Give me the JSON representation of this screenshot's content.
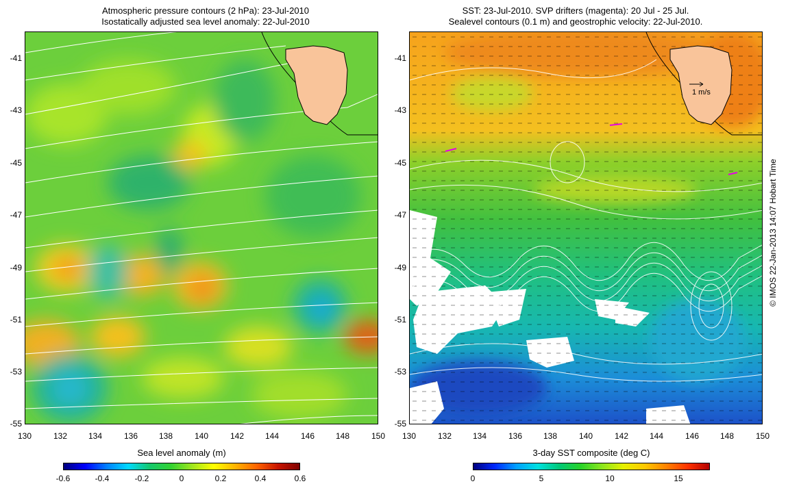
{
  "left_panel": {
    "title_line1": "Atmospheric pressure contours (2 hPa): 23-Jul-2010",
    "title_line2": "Isostatically adjusted sea level anomaly: 22-Jul-2010",
    "colorbar_label": "Sea level anomaly (m)",
    "colorbar_ticks": [
      "-0.6",
      "-0.4",
      "-0.2",
      "0",
      "0.2",
      "0.4",
      "0.6"
    ]
  },
  "right_panel": {
    "title_line1": "SST: 23-Jul-2010. SVP drifters (magenta): 20 Jul - 25 Jul.",
    "title_line2": "Sealevel contours (0.1 m) and geostrophic velocity: 22-Jul-2010.",
    "colorbar_label": "3-day SST composite (deg C)",
    "colorbar_ticks": [
      "0",
      "5",
      "10",
      "15"
    ],
    "velocity_scale": "1 m/s"
  },
  "axes": {
    "lat_labels": [
      "-41",
      "-43",
      "-45",
      "-47",
      "-49",
      "-51",
      "-53",
      "-55"
    ],
    "lon_labels": [
      "130",
      "132",
      "134",
      "136",
      "138",
      "140",
      "142",
      "144",
      "146",
      "148",
      "150"
    ]
  },
  "credit": "© IMOS 22-Jan-2013 14:07 Hobart Time",
  "colors": {
    "land": "#f9c49a",
    "contour": "#ffffff",
    "drifters": "#e600e6",
    "coastline": "#000000"
  }
}
